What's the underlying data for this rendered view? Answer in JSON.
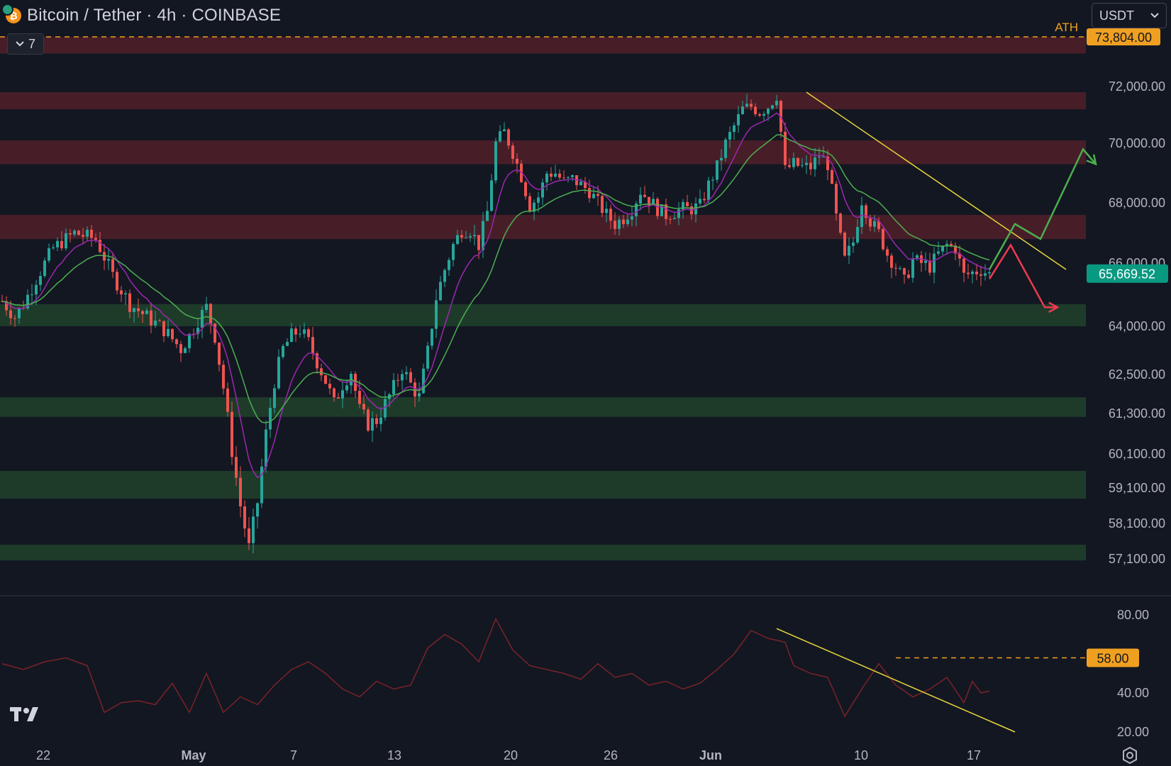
{
  "header": {
    "title": "Bitcoin / Tether · 4h · COINBASE",
    "indicator_count": "7",
    "currency": "USDT"
  },
  "colors": {
    "bg": "#131722",
    "resistance_zone": "#4a1f29",
    "support_zone": "#1f3d2b",
    "ath": "#f0a020",
    "last_price": "#089981",
    "up": "#26a69a",
    "down": "#ef5350",
    "trendline": "#e8d63a",
    "ema_fast": "#9c27b0",
    "ema_slow": "#4caf50",
    "rsi": "#7a2328"
  },
  "chart_data": {
    "type": "candlestick",
    "symbol": "Bitcoin / Tether",
    "timeframe": "4h",
    "exchange": "COINBASE",
    "x_ticks": [
      "22",
      "May",
      "7",
      "13",
      "20",
      "26",
      "Jun",
      "10",
      "17"
    ],
    "y_ticks": [
      "72,000.00",
      "70,000.00",
      "68,000.00",
      "66,000.00",
      "64,000.00",
      "62,500.00",
      "61,300.00",
      "60,100.00",
      "59,100.00",
      "58,100.00",
      "57,100.00"
    ],
    "ath": {
      "label": "ATH",
      "value": "73,804.00"
    },
    "last_price": "65,669.52",
    "resistance_zones": [
      [
        73200,
        73800
      ],
      [
        71200,
        71800
      ],
      [
        69300,
        70100
      ],
      [
        66800,
        67600
      ]
    ],
    "support_zones": [
      [
        64000,
        64700
      ],
      [
        61200,
        61800
      ],
      [
        58800,
        59600
      ],
      [
        56900,
        57500
      ]
    ],
    "price_path": [
      [
        0,
        64800
      ],
      [
        3,
        64300
      ],
      [
        5,
        64700
      ],
      [
        8,
        65500
      ],
      [
        12,
        66500
      ],
      [
        17,
        67000
      ],
      [
        22,
        66800
      ],
      [
        26,
        65600
      ],
      [
        30,
        64700
      ],
      [
        34,
        64300
      ],
      [
        38,
        63900
      ],
      [
        42,
        63300
      ],
      [
        44,
        63700
      ],
      [
        46,
        64200
      ],
      [
        48,
        64600
      ],
      [
        50,
        63700
      ],
      [
        52,
        62100
      ],
      [
        54,
        60200
      ],
      [
        56,
        58600
      ],
      [
        58,
        57400
      ],
      [
        60,
        58700
      ],
      [
        62,
        60700
      ],
      [
        64,
        62300
      ],
      [
        66,
        63300
      ],
      [
        68,
        63700
      ],
      [
        70,
        63900
      ],
      [
        72,
        63500
      ],
      [
        74,
        62900
      ],
      [
        76,
        62300
      ],
      [
        78,
        61600
      ],
      [
        80,
        62200
      ],
      [
        82,
        62600
      ],
      [
        84,
        61400
      ],
      [
        86,
        61000
      ],
      [
        88,
        61100
      ],
      [
        90,
        61600
      ],
      [
        92,
        62100
      ],
      [
        94,
        62700
      ],
      [
        96,
        62200
      ],
      [
        98,
        61800
      ],
      [
        100,
        63200
      ],
      [
        102,
        64900
      ],
      [
        104,
        65800
      ],
      [
        106,
        66600
      ],
      [
        108,
        67100
      ],
      [
        110,
        67100
      ],
      [
        112,
        66600
      ],
      [
        114,
        67700
      ],
      [
        116,
        70000
      ],
      [
        118,
        70400
      ],
      [
        120,
        69700
      ],
      [
        122,
        68900
      ],
      [
        124,
        67900
      ],
      [
        126,
        68200
      ],
      [
        128,
        69000
      ],
      [
        130,
        69000
      ],
      [
        132,
        68700
      ],
      [
        134,
        68800
      ],
      [
        136,
        68600
      ],
      [
        138,
        68400
      ],
      [
        140,
        68000
      ],
      [
        142,
        67600
      ],
      [
        144,
        67300
      ],
      [
        146,
        67500
      ],
      [
        148,
        67800
      ],
      [
        150,
        68400
      ],
      [
        152,
        68100
      ],
      [
        154,
        67800
      ],
      [
        156,
        67600
      ],
      [
        158,
        67700
      ],
      [
        160,
        67800
      ],
      [
        162,
        67800
      ],
      [
        164,
        67900
      ],
      [
        166,
        68600
      ],
      [
        168,
        69200
      ],
      [
        170,
        70000
      ],
      [
        172,
        70600
      ],
      [
        174,
        71200
      ],
      [
        176,
        71300
      ],
      [
        178,
        71100
      ],
      [
        180,
        71300
      ],
      [
        182,
        71700
      ],
      [
        184,
        69100
      ],
      [
        186,
        69300
      ],
      [
        188,
        69200
      ],
      [
        190,
        69200
      ],
      [
        192,
        69600
      ],
      [
        194,
        69300
      ],
      [
        196,
        67500
      ],
      [
        198,
        66100
      ],
      [
        200,
        66700
      ],
      [
        202,
        68100
      ],
      [
        204,
        67400
      ],
      [
        206,
        67000
      ],
      [
        208,
        66300
      ],
      [
        210,
        65900
      ],
      [
        212,
        65400
      ],
      [
        214,
        66100
      ],
      [
        216,
        66000
      ],
      [
        218,
        65900
      ],
      [
        220,
        66300
      ],
      [
        222,
        66600
      ],
      [
        224,
        66500
      ],
      [
        226,
        65600
      ],
      [
        228,
        65700
      ],
      [
        230,
        65800
      ],
      [
        232,
        65650
      ]
    ],
    "projection_up": [
      [
        232,
        65800
      ],
      [
        238,
        67300
      ],
      [
        244,
        66800
      ],
      [
        254,
        69800
      ],
      [
        257,
        69300
      ]
    ],
    "projection_down": [
      [
        232,
        65500
      ],
      [
        237,
        66600
      ],
      [
        245,
        64600
      ],
      [
        248,
        64600
      ]
    ],
    "price_trendline": [
      [
        189,
        71800
      ],
      [
        250,
        65800
      ]
    ],
    "rsi": {
      "y_ticks": [
        "80.00",
        "40.00",
        "20.00"
      ],
      "marked_level": "58.00",
      "values": [
        [
          0,
          55
        ],
        [
          5,
          52
        ],
        [
          10,
          56
        ],
        [
          15,
          58
        ],
        [
          20,
          54
        ],
        [
          24,
          30
        ],
        [
          28,
          35
        ],
        [
          32,
          36
        ],
        [
          36,
          34
        ],
        [
          40,
          45
        ],
        [
          44,
          30
        ],
        [
          48,
          50
        ],
        [
          52,
          30
        ],
        [
          56,
          38
        ],
        [
          60,
          34
        ],
        [
          64,
          44
        ],
        [
          68,
          52
        ],
        [
          72,
          56
        ],
        [
          76,
          50
        ],
        [
          80,
          42
        ],
        [
          84,
          38
        ],
        [
          88,
          46
        ],
        [
          92,
          42
        ],
        [
          96,
          44
        ],
        [
          100,
          63
        ],
        [
          104,
          70
        ],
        [
          108,
          65
        ],
        [
          112,
          56
        ],
        [
          116,
          78
        ],
        [
          120,
          62
        ],
        [
          124,
          54
        ],
        [
          128,
          52
        ],
        [
          132,
          50
        ],
        [
          136,
          47
        ],
        [
          140,
          55
        ],
        [
          144,
          48
        ],
        [
          148,
          50
        ],
        [
          152,
          44
        ],
        [
          156,
          46
        ],
        [
          160,
          42
        ],
        [
          164,
          45
        ],
        [
          168,
          52
        ],
        [
          172,
          60
        ],
        [
          176,
          72
        ],
        [
          180,
          68
        ],
        [
          184,
          66
        ],
        [
          186,
          54
        ],
        [
          190,
          50
        ],
        [
          194,
          48
        ],
        [
          198,
          28
        ],
        [
          202,
          42
        ],
        [
          206,
          55
        ],
        [
          210,
          44
        ],
        [
          214,
          38
        ],
        [
          218,
          42
        ],
        [
          222,
          48
        ],
        [
          226,
          35
        ],
        [
          228,
          46
        ],
        [
          230,
          40
        ],
        [
          232,
          41
        ]
      ],
      "trendline": [
        [
          182,
          73
        ],
        [
          238,
          20
        ]
      ]
    }
  }
}
